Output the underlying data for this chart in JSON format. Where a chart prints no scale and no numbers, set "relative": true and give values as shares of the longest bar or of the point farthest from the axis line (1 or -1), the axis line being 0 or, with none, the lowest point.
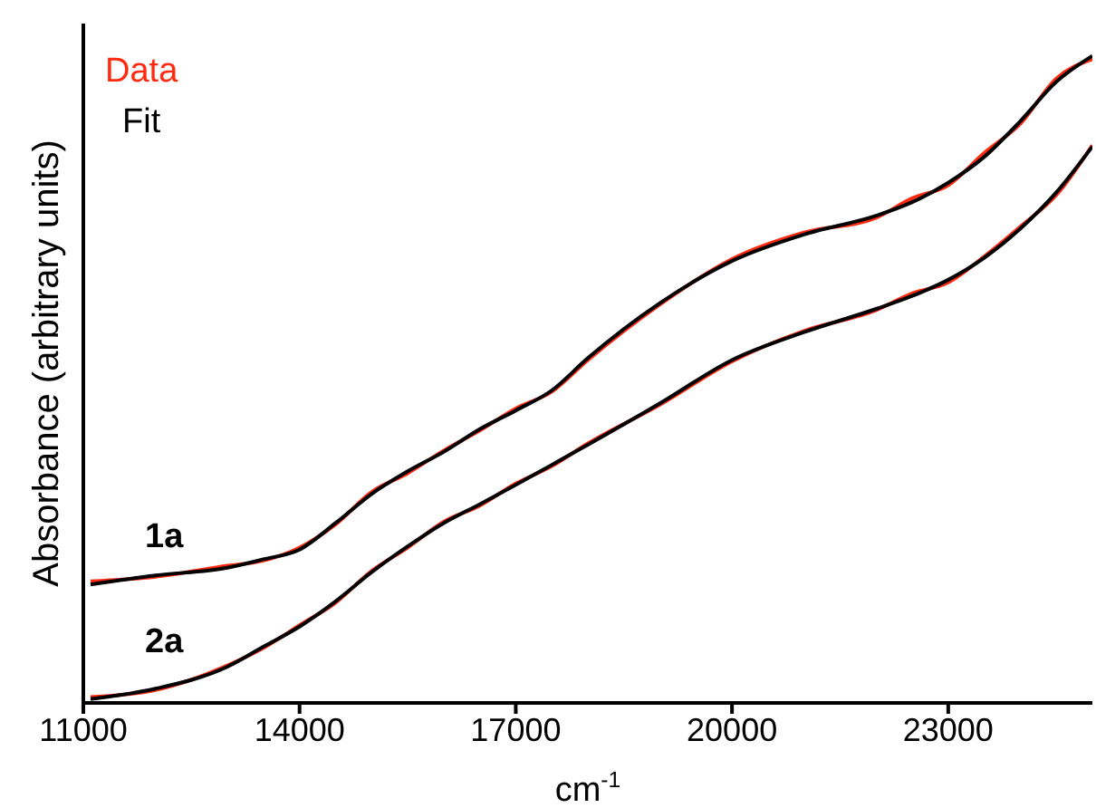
{
  "chart_data": {
    "type": "line",
    "relative": true,
    "xlabel": "cm$^{-1}$",
    "ylabel": "Absorbance (arbitrary units)",
    "x": [
      11100,
      12000,
      13000,
      13500,
      14000,
      14500,
      15000,
      15500,
      16000,
      16500,
      17000,
      17500,
      18000,
      19000,
      20000,
      21000,
      22000,
      22500,
      23000,
      23500,
      24000,
      24500,
      25000
    ],
    "xlim": [
      11000,
      25000
    ],
    "xticks": [
      11000,
      14000,
      17000,
      20000,
      23000
    ],
    "series": [
      {
        "name": "Data",
        "color": "#ff2a10",
        "values": [
          0.188,
          0.195,
          0.212,
          0.22,
          0.24,
          0.276,
          0.326,
          0.355,
          0.39,
          0.421,
          0.455,
          0.481,
          0.53,
          0.616,
          0.686,
          0.727,
          0.75,
          0.78,
          0.8,
          0.85,
          0.895,
          0.965,
          0.995
        ]
      },
      {
        "name": "Fit",
        "color": "#000000",
        "values": [
          0.183,
          0.197,
          0.209,
          0.222,
          0.237,
          0.278,
          0.323,
          0.358,
          0.388,
          0.423,
          0.452,
          0.483,
          0.533,
          0.618,
          0.683,
          0.724,
          0.753,
          0.774,
          0.804,
          0.844,
          0.899,
          0.96,
          1.0
        ]
      },
      {
        "color": "#ff2a10",
        "values": [
          0.009,
          0.02,
          0.058,
          0.085,
          0.12,
          0.155,
          0.204,
          0.24,
          0.28,
          0.305,
          0.339,
          0.366,
          0.401,
          0.461,
          0.528,
          0.575,
          0.607,
          0.633,
          0.65,
          0.69,
          0.736,
          0.785,
          0.862
        ]
      },
      {
        "color": "#000000",
        "values": [
          0.006,
          0.022,
          0.056,
          0.087,
          0.118,
          0.157,
          0.202,
          0.242,
          0.278,
          0.307,
          0.337,
          0.368,
          0.399,
          0.463,
          0.53,
          0.573,
          0.609,
          0.629,
          0.654,
          0.688,
          0.733,
          0.789,
          0.86
        ]
      }
    ],
    "annotations": [
      "1a",
      "2a"
    ],
    "legend": "top left",
    "grid": false,
    "marker": "none",
    "line_style": "solid"
  }
}
